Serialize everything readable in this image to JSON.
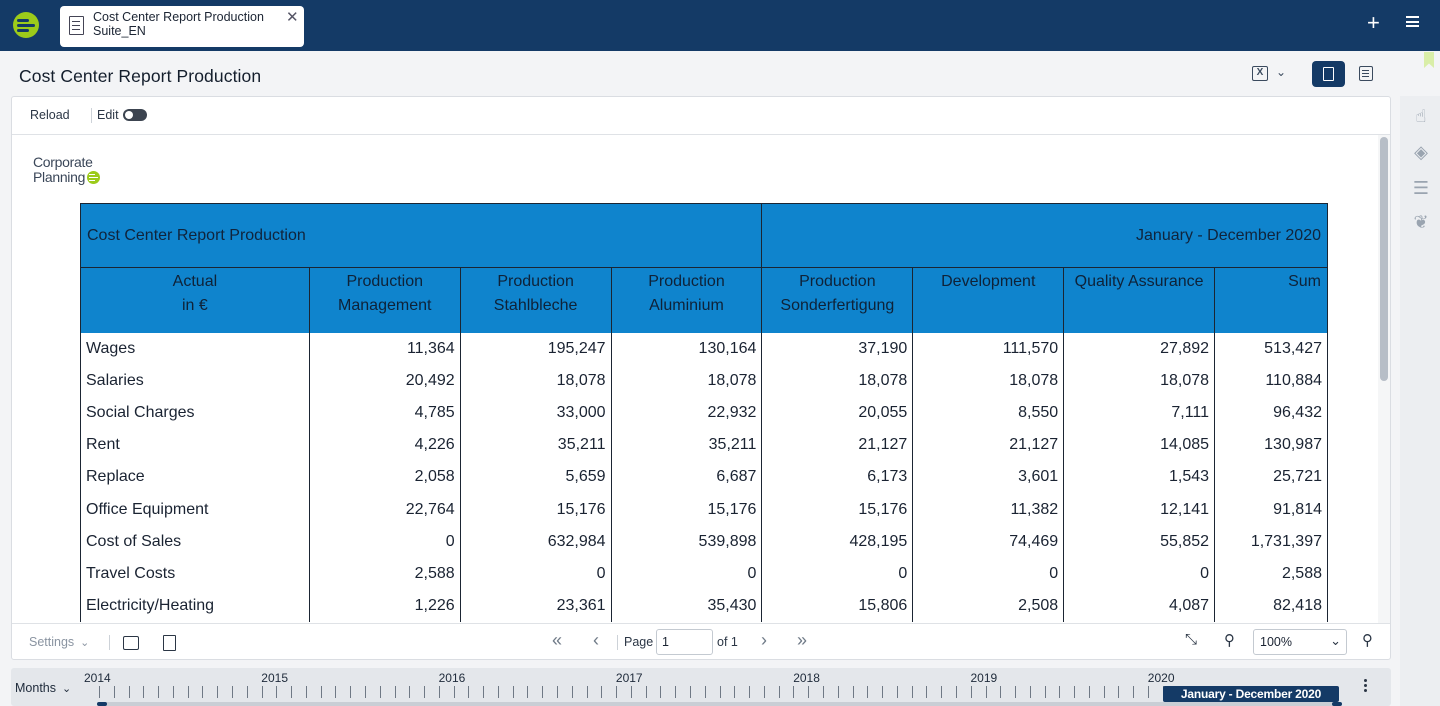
{
  "app": {
    "tab_title": "Cost Center Report Production Suite_EN",
    "tab_close": "✕",
    "add_label": "+",
    "page_title": "Cost Center Report Production"
  },
  "toolbar": {
    "reload": "Reload",
    "edit": "Edit"
  },
  "logo": {
    "line1": "Corporate",
    "line2": "Planning"
  },
  "report": {
    "title": "Cost Center Report Production",
    "period": "January - December 2020",
    "columns": [
      {
        "line1": "Actual",
        "line2": "in €"
      },
      {
        "line1": "Production",
        "line2": "Management"
      },
      {
        "line1": "Production",
        "line2": "Stahlbleche"
      },
      {
        "line1": "Production",
        "line2": "Aluminium"
      },
      {
        "line1": "Production",
        "line2": "Sonderfertigung"
      },
      {
        "line1": "Development",
        "line2": ""
      },
      {
        "line1": "Quality Assurance",
        "line2": ""
      },
      {
        "line1": "Sum",
        "line2": ""
      }
    ],
    "rows": [
      {
        "label": "Wages",
        "values": [
          "11,364",
          "195,247",
          "130,164",
          "37,190",
          "111,570",
          "27,892",
          "513,427"
        ]
      },
      {
        "label": "Salaries",
        "values": [
          "20,492",
          "18,078",
          "18,078",
          "18,078",
          "18,078",
          "18,078",
          "110,884"
        ]
      },
      {
        "label": "Social Charges",
        "values": [
          "4,785",
          "33,000",
          "22,932",
          "20,055",
          "8,550",
          "7,111",
          "96,432"
        ]
      },
      {
        "label": "Rent",
        "values": [
          "4,226",
          "35,211",
          "35,211",
          "21,127",
          "21,127",
          "14,085",
          "130,987"
        ]
      },
      {
        "label": "Replace",
        "values": [
          "2,058",
          "5,659",
          "6,687",
          "6,173",
          "3,601",
          "1,543",
          "25,721"
        ]
      },
      {
        "label": "Office Equipment",
        "values": [
          "22,764",
          "15,176",
          "15,176",
          "15,176",
          "11,382",
          "12,141",
          "91,814"
        ]
      },
      {
        "label": "Cost of Sales",
        "values": [
          "0",
          "632,984",
          "539,898",
          "428,195",
          "74,469",
          "55,852",
          "1,731,397"
        ]
      },
      {
        "label": "Travel Costs",
        "values": [
          "2,588",
          "0",
          "0",
          "0",
          "0",
          "0",
          "2,588"
        ]
      },
      {
        "label": "Electricity/Heating",
        "values": [
          "1,226",
          "23,361",
          "35,430",
          "15,806",
          "2,508",
          "4,087",
          "82,418"
        ]
      }
    ]
  },
  "bottombar": {
    "settings": "Settings",
    "page_label": "Page",
    "page_value": "1",
    "of_label": "of 1",
    "zoom": "100%"
  },
  "timeline": {
    "granularity": "Months",
    "years": [
      "2014",
      "2015",
      "2016",
      "2017",
      "2018",
      "2019",
      "2020"
    ],
    "range_label": "January - December 2020"
  },
  "colors": {
    "header_blue": "#0f84cd",
    "navy": "#143a66",
    "brand_green": "#9ccb1a"
  }
}
